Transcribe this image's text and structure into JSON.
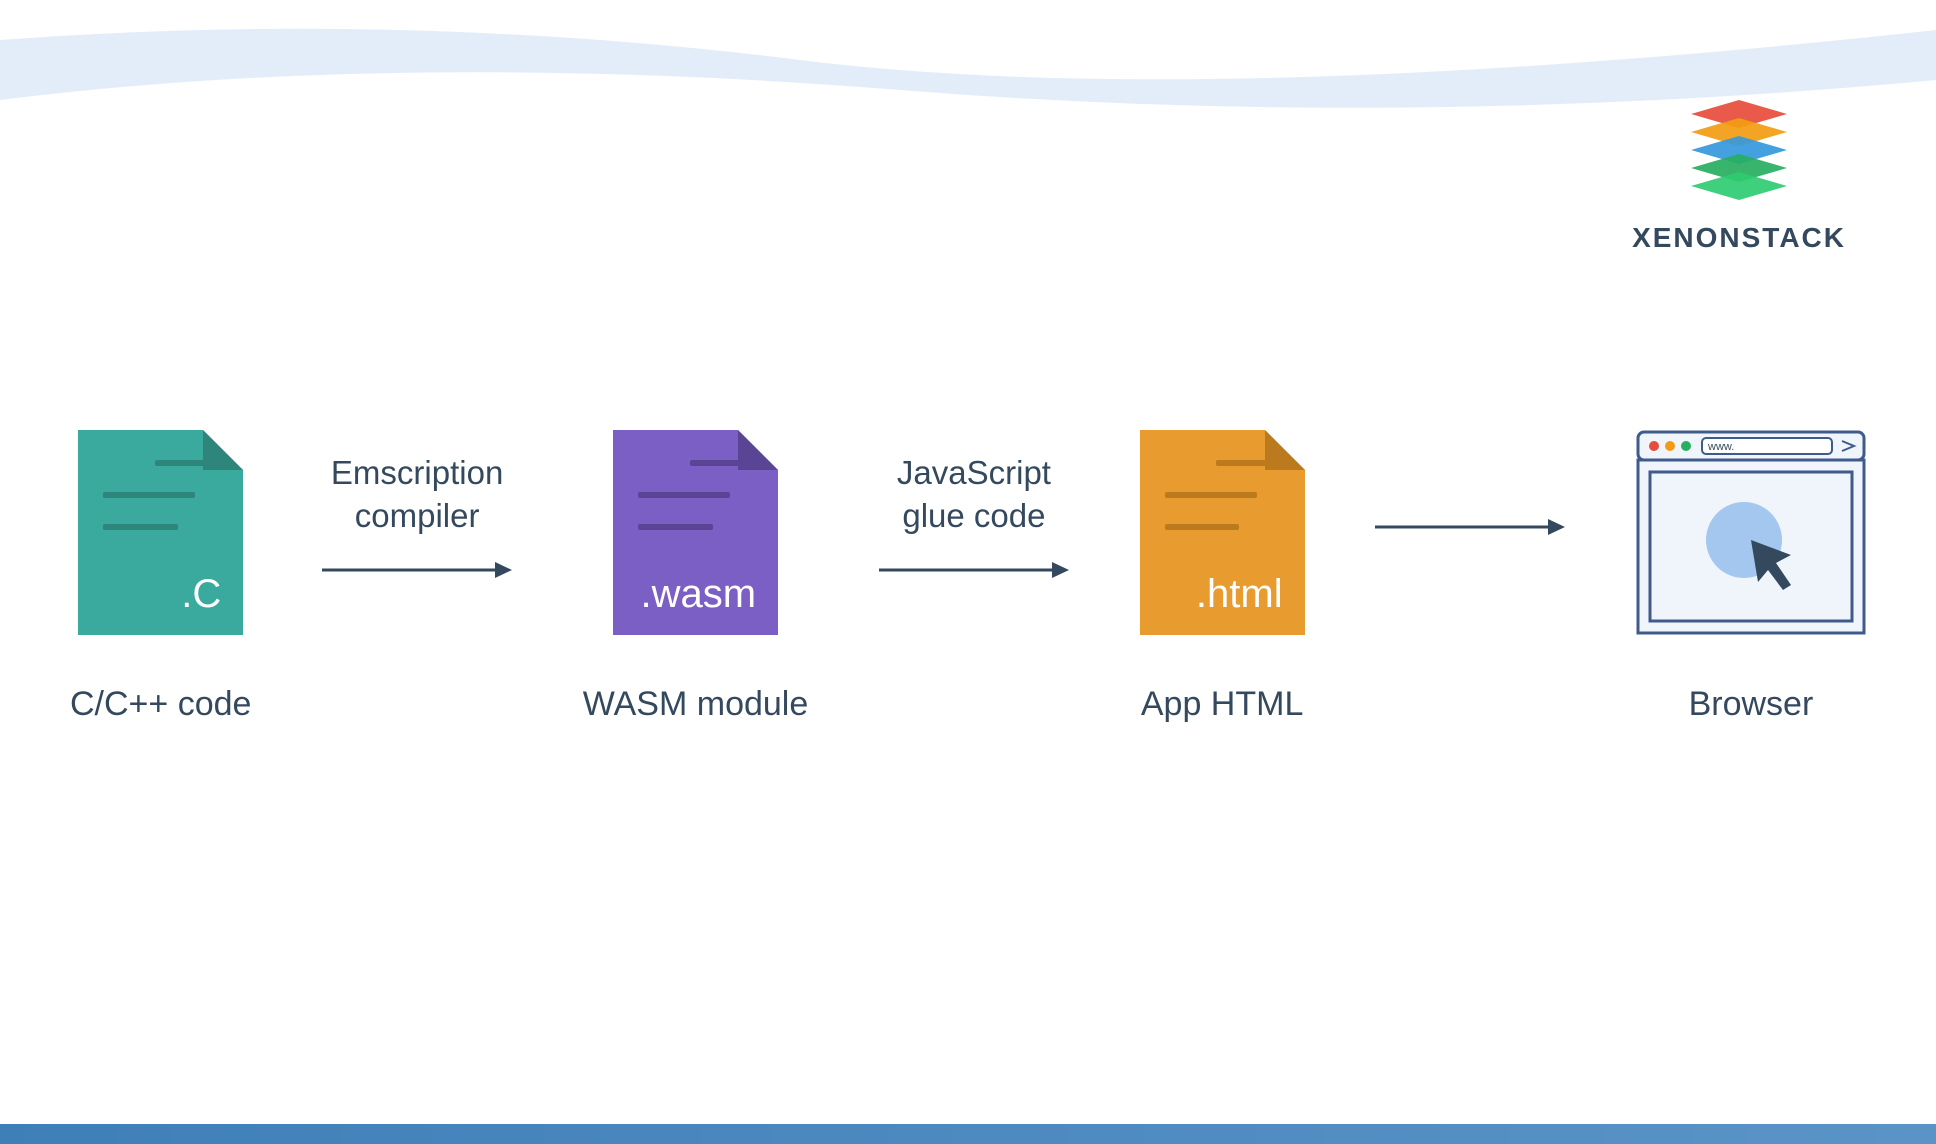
{
  "logo": {
    "text": "XENONSTACK",
    "layers": [
      {
        "color": "#e74c3c"
      },
      {
        "color": "#f39c12"
      },
      {
        "color": "#3498db"
      },
      {
        "color": "#27ae60"
      },
      {
        "color": "#2ecc71"
      }
    ]
  },
  "wave_color": "#e3edf9",
  "stages": [
    {
      "label": "C/C++ code",
      "ext": ".C",
      "bg_color": "#3aa99e",
      "fold_color": "#2e857c",
      "line_color": "#2e857c",
      "line_widths": [
        55,
        80,
        65
      ]
    },
    {
      "label": "WASM module",
      "ext": ".wasm",
      "bg_color": "#7c5fc4",
      "fold_color": "#5a4494",
      "line_color": "#5a4494",
      "line_widths": [
        55,
        80,
        65
      ]
    },
    {
      "label": "App HTML",
      "ext": ".html",
      "bg_color": "#e89b2f",
      "fold_color": "#bb7a1e",
      "line_color": "#bb7a1e",
      "line_widths": [
        55,
        80,
        65
      ]
    }
  ],
  "browser": {
    "label": "Browser",
    "frame_color": "#3f5b8c",
    "bg_color": "#f0f4fb",
    "url_text": "www.",
    "circle_color": "#a3c7ef",
    "cursor_color": "#34495e",
    "dots": [
      "#e74c3c",
      "#f39c12",
      "#27ae60"
    ]
  },
  "arrows": [
    {
      "label_line1": "Emscription",
      "label_line2": "compiler"
    },
    {
      "label_line1": "JavaScript",
      "label_line2": "glue code"
    },
    {
      "label_line1": "",
      "label_line2": ""
    }
  ],
  "arrow_color": "#34495e",
  "label_color": "#34495e",
  "bottom_bar_color": "#3f7fb8"
}
